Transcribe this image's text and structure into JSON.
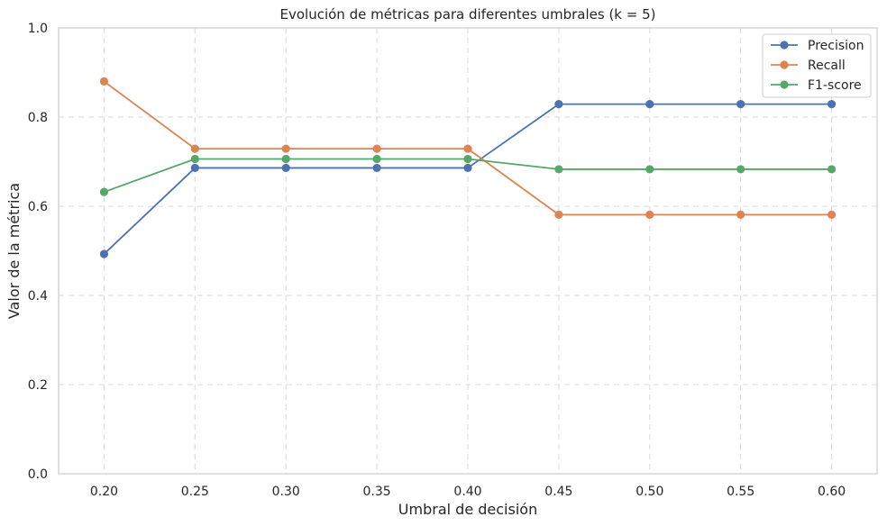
{
  "chart_data": {
    "type": "line",
    "title": "Evolución de métricas para diferentes umbrales (k = 5)",
    "xlabel": "Umbral de decisión",
    "ylabel": "Valor de la métrica",
    "x": [
      0.2,
      0.25,
      0.3,
      0.35,
      0.4,
      0.45,
      0.5,
      0.55,
      0.6
    ],
    "x_tick_labels": [
      "0.20",
      "0.25",
      "0.30",
      "0.35",
      "0.40",
      "0.45",
      "0.50",
      "0.55",
      "0.60"
    ],
    "y_tick_labels": [
      "0.0",
      "0.2",
      "0.4",
      "0.6",
      "0.8",
      "1.0"
    ],
    "y_ticks": [
      0.0,
      0.2,
      0.4,
      0.6,
      0.8,
      1.0
    ],
    "xlim": [
      0.175,
      0.625
    ],
    "ylim": [
      0.0,
      1.0
    ],
    "grid": true,
    "legend_position": "top-right",
    "series": [
      {
        "name": "Precision",
        "color": "#4c72b0",
        "values": [
          0.493,
          0.686,
          0.686,
          0.686,
          0.686,
          0.829,
          0.829,
          0.829,
          0.829
        ]
      },
      {
        "name": "Recall",
        "color": "#dd8452",
        "values": [
          0.88,
          0.729,
          0.729,
          0.729,
          0.729,
          0.581,
          0.581,
          0.581,
          0.581
        ]
      },
      {
        "name": "F1-score",
        "color": "#55a868",
        "values": [
          0.632,
          0.706,
          0.706,
          0.706,
          0.706,
          0.683,
          0.683,
          0.683,
          0.683
        ]
      }
    ]
  }
}
